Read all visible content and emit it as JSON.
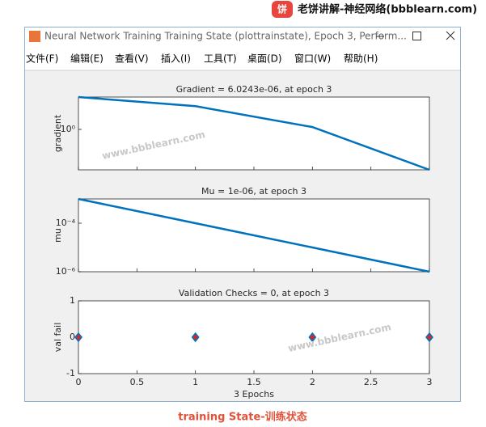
{
  "header": {
    "badge": "饼",
    "site": "老饼讲解-神经网络(bbblearn.com)"
  },
  "window": {
    "title": "Neural Network Training Training State (plottrainstate), Epoch 3, Perform...",
    "menu": [
      "文件(F)",
      "编辑(E)",
      "查看(V)",
      "插入(I)",
      "工具(T)",
      "桌面(D)",
      "窗口(W)",
      "帮助(H)"
    ]
  },
  "watermarks": [
    "www.bbblearn.com",
    "www.bbblearn.com"
  ],
  "chart_data": [
    {
      "type": "line",
      "title": "Gradient = 6.0243e-06, at epoch 3",
      "ylabel": "gradient",
      "x": [
        0,
        1,
        2,
        3
      ],
      "values": [
        15000,
        1000,
        2,
        6.0243e-06
      ],
      "color": "#0072bd",
      "xlim": [
        0,
        3
      ],
      "xticks": [
        0,
        0.5,
        1,
        1.5,
        2,
        2.5,
        3
      ],
      "show_xtick_labels": false,
      "ylim": [
        6.0243e-06,
        15000
      ],
      "yticks": [
        {
          "value": 1,
          "label": "10⁰"
        }
      ],
      "log_scale": true
    },
    {
      "type": "line",
      "title": "Mu = 1e-06, at epoch 3",
      "ylabel": "mu",
      "x": [
        0,
        1,
        2,
        3
      ],
      "values": [
        0.001,
        0.0001,
        1e-05,
        1e-06
      ],
      "color": "#0072bd",
      "xlim": [
        0,
        3
      ],
      "xticks": [
        0,
        0.5,
        1,
        1.5,
        2,
        2.5,
        3
      ],
      "show_xtick_labels": false,
      "ylim": [
        1e-06,
        0.001
      ],
      "yticks": [
        {
          "value": 0.0001,
          "label": "10⁻⁴"
        },
        {
          "value": 1e-06,
          "label": "10⁻⁶"
        }
      ],
      "log_scale": true
    },
    {
      "type": "scatter",
      "title": "Validation Checks = 0, at epoch 3",
      "ylabel": "val fail",
      "xlabel": "3 Epochs",
      "x": [
        0,
        1,
        2,
        3
      ],
      "values": [
        0,
        0,
        0,
        0
      ],
      "color": "#0072bd",
      "marker": "diamond",
      "marker_fill": "#d62728",
      "xlim": [
        0,
        3
      ],
      "xticks": [
        0,
        0.5,
        1,
        1.5,
        2,
        2.5,
        3
      ],
      "show_xtick_labels": true,
      "ylim": [
        -1,
        1
      ],
      "yticks": [
        -1,
        0,
        1
      ],
      "log_scale": false
    }
  ],
  "caption": "training State-训练状态"
}
